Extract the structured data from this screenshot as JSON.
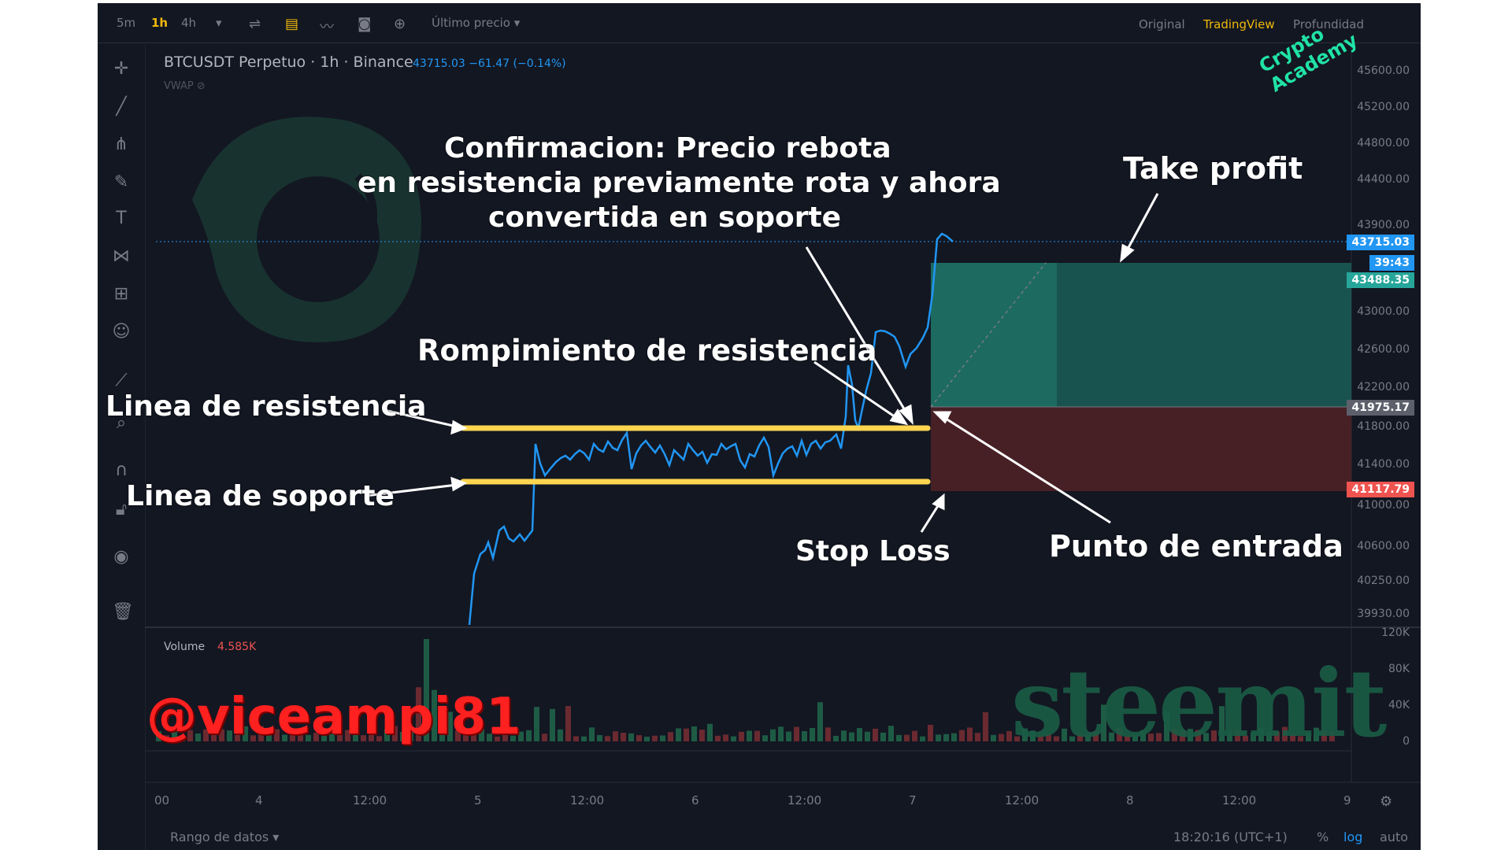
{
  "toolbar": {
    "intervals": [
      "5m",
      "1h",
      "4h"
    ],
    "price_source": "Último precio",
    "views": [
      "Original",
      "TradingView",
      "Profundidad"
    ]
  },
  "symbol": {
    "title": "BTCUSDT Perpetuo · 1h · Binance",
    "price_line": "43715.03  −61.47 (−0.14%)",
    "indicator": "VWAP"
  },
  "y_axis_labels": [
    "45600.00",
    "45200.00",
    "44800.00",
    "44400.00",
    "43900.00",
    "43000.00",
    "42600.00",
    "42200.00",
    "41800.00",
    "41400.00",
    "41000.00",
    "40600.00",
    "40250.00",
    "39930.00"
  ],
  "badges": {
    "last_price": "43715.03",
    "countdown": "39:43",
    "take_profit": "43488.35",
    "entry": "41975.17",
    "stop_loss": "41117.79"
  },
  "volume": {
    "label": "Volume",
    "value": "4.585K",
    "axis": [
      "120K",
      "80K",
      "40K",
      "0"
    ]
  },
  "x_axis_labels": [
    "00",
    "4",
    "12:00",
    "5",
    "12:00",
    "6",
    "12:00",
    "7",
    "12:00",
    "8",
    "12:00",
    "9"
  ],
  "bottom": {
    "range": "Rango de datos",
    "clock": "18:20:16 (UTC+1)",
    "pct": "%",
    "log": "log",
    "auto": "auto"
  },
  "annotations": {
    "confirm_line1": "Confirmacion: Precio rebota",
    "confirm_line2": "en resistencia previamente rota y ahora",
    "confirm_line3": "convertida en soporte",
    "take_profit": "Take profit",
    "breakout": "Rompimiento de resistencia",
    "resistance": "Linea de resistencia",
    "support": "Linea de soporte",
    "stop_loss": "Stop Loss",
    "entry": "Punto de entrada"
  },
  "watermarks": {
    "crypto_academy": "Crypto Academy",
    "steemit": "steemit",
    "user": "@viceampi81"
  },
  "colors": {
    "background": "#131722",
    "price_line": "#2196f3",
    "sr_lines": "#ffd54f",
    "profit_zone": "#1b5e57",
    "loss_zone": "#4a2127",
    "vol_up": "#26a69a",
    "vol_down": "#ef5350"
  }
}
